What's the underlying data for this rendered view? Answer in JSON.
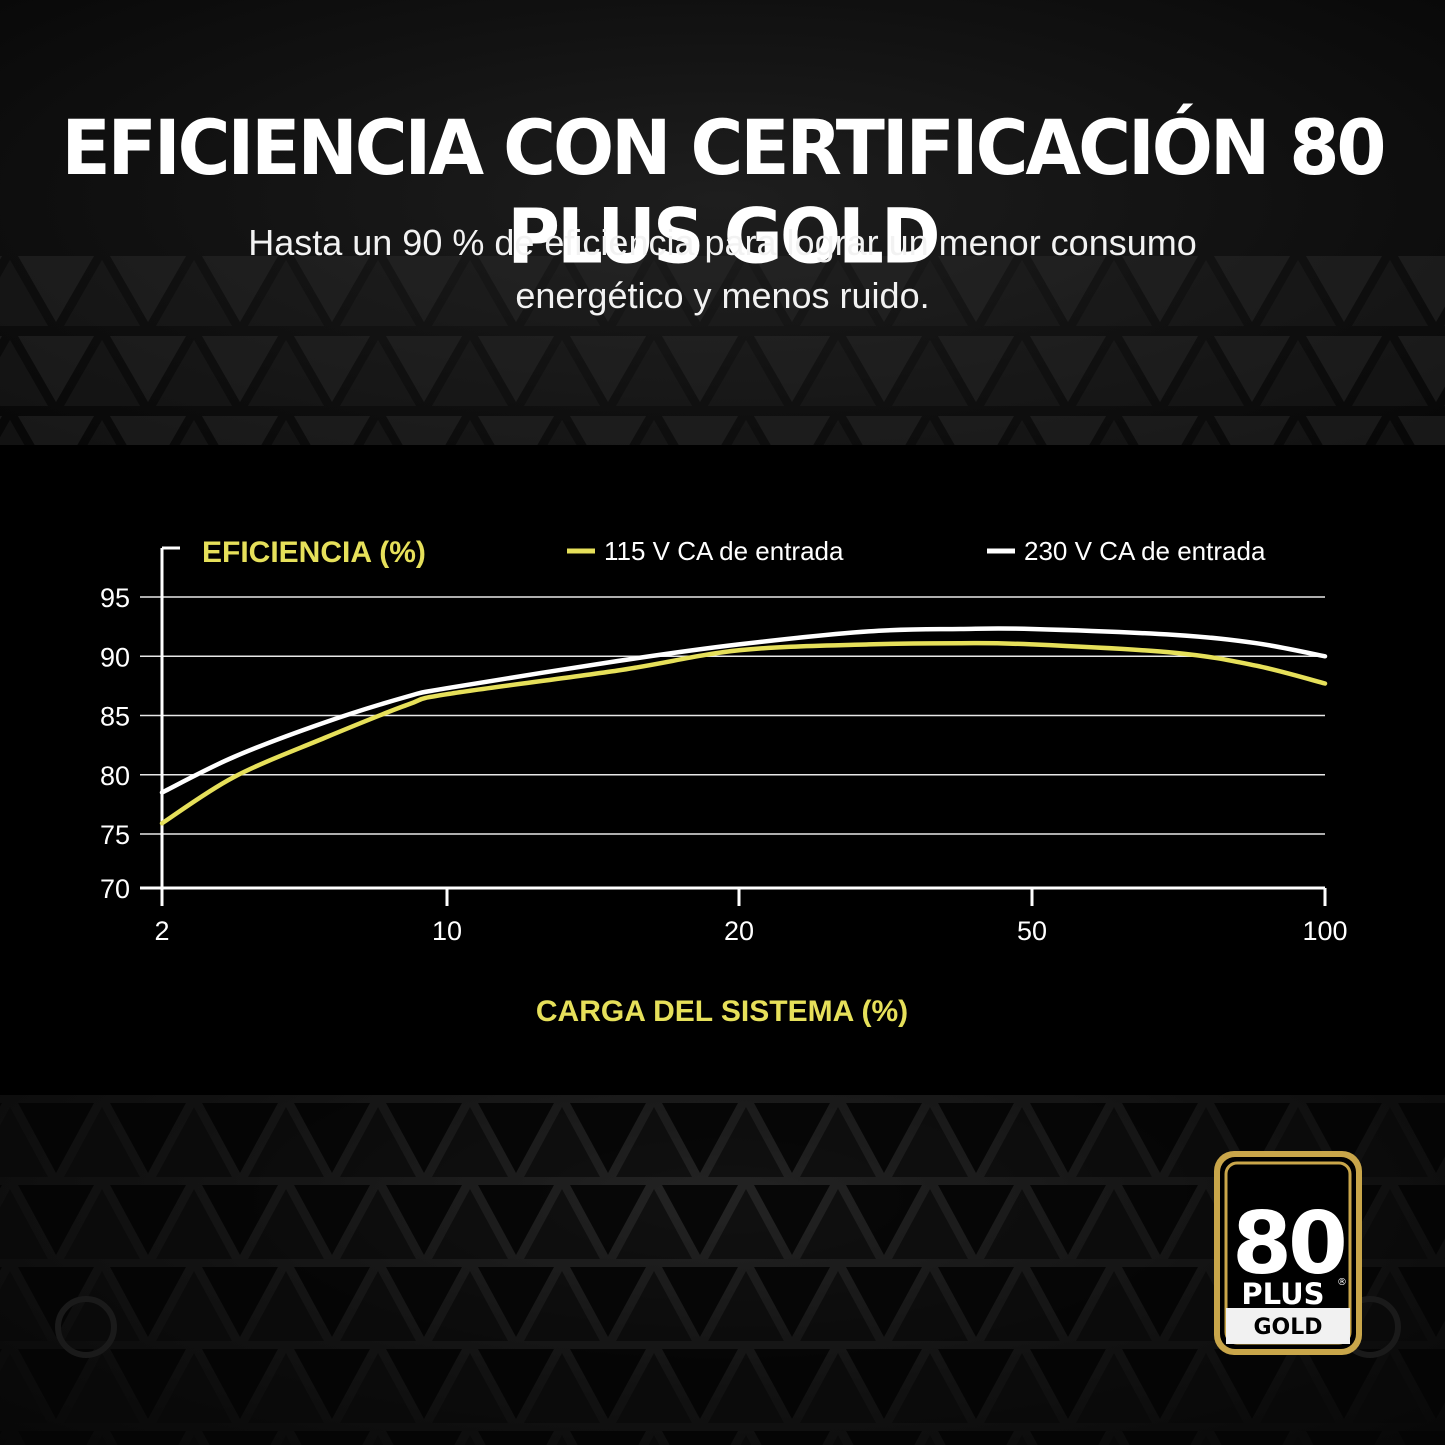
{
  "page": {
    "title": "EFICIENCIA CON CERTIFICACIÓN 80 PLUS GOLD",
    "subtitle": "Hasta un 90 % de eficiencia para lograr un menor consumo energético y menos ruido."
  },
  "badge": {
    "number": "80",
    "plus": "PLUS",
    "registered": "®",
    "tier": "GOLD"
  },
  "colors": {
    "accent_yellow": "#e6e05a",
    "line_white": "#ffffff",
    "badge_gold": "#c9a64a",
    "background": "#000000"
  },
  "chart_data": {
    "type": "line",
    "title": "",
    "ylabel": "EFICIENCIA (%)",
    "xlabel": "CARGA DEL SISTEMA (%)",
    "x_ticks": [
      "2",
      "10",
      "20",
      "50",
      "100"
    ],
    "y_ticks": [
      95,
      90,
      85,
      80,
      75,
      70
    ],
    "ylim": [
      70,
      95
    ],
    "x_scale": "categorical-log",
    "grid": "horizontal",
    "legend_position": "top",
    "series": [
      {
        "name": "115 V CA de entrada",
        "color": "#e6e05a",
        "points": [
          {
            "x": 2,
            "y": 75.9
          },
          {
            "x": 3,
            "y": 79.8
          },
          {
            "x": 5,
            "y": 83.1
          },
          {
            "x": 8,
            "y": 85.9
          },
          {
            "x": 10,
            "y": 86.8
          },
          {
            "x": 15,
            "y": 88.8
          },
          {
            "x": 20,
            "y": 90.5
          },
          {
            "x": 30,
            "y": 91.0
          },
          {
            "x": 40,
            "y": 91.1
          },
          {
            "x": 50,
            "y": 91.0
          },
          {
            "x": 70,
            "y": 90.3
          },
          {
            "x": 85,
            "y": 89.2
          },
          {
            "x": 100,
            "y": 87.7
          }
        ]
      },
      {
        "name": "230 V CA de entrada",
        "color": "#ffffff",
        "points": [
          {
            "x": 2,
            "y": 78.5
          },
          {
            "x": 3,
            "y": 81.5
          },
          {
            "x": 5,
            "y": 84.4
          },
          {
            "x": 8,
            "y": 86.6
          },
          {
            "x": 10,
            "y": 87.3
          },
          {
            "x": 15,
            "y": 89.6
          },
          {
            "x": 20,
            "y": 91.0
          },
          {
            "x": 30,
            "y": 92.1
          },
          {
            "x": 40,
            "y": 92.3
          },
          {
            "x": 50,
            "y": 92.3
          },
          {
            "x": 70,
            "y": 91.8
          },
          {
            "x": 85,
            "y": 91.1
          },
          {
            "x": 100,
            "y": 90.0
          }
        ]
      }
    ]
  }
}
